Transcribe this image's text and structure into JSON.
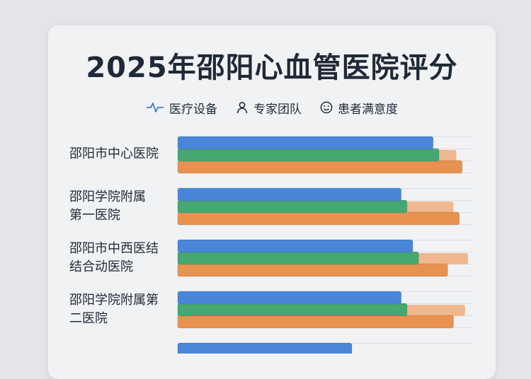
{
  "chart_data": {
    "type": "bar",
    "orientation": "horizontal",
    "title": "2025年邵阳心血管医院评分",
    "categories": [
      [
        "邵阳市中心医院"
      ],
      [
        "邵阳学院附属",
        "第一医院"
      ],
      [
        "邵阳市中西医结",
        "结合动医院"
      ],
      [
        "邵阳学院附属第",
        "二医院"
      ],
      [
        ""
      ]
    ],
    "series": [
      {
        "name": "医疗设备",
        "color": "#4a86d8",
        "values": [
          88,
          77,
          81,
          77,
          60
        ]
      },
      {
        "name": "专家团队",
        "color": "#46a772",
        "values": [
          90,
          79,
          83,
          79,
          null
        ]
      },
      {
        "name": "患者满意度",
        "color": "#e8924f",
        "values": [
          98,
          97,
          93,
          95,
          null
        ]
      }
    ],
    "ghost_values": [
      96,
      95,
      100,
      99,
      null
    ],
    "xlim": [
      0,
      100
    ],
    "grid": true,
    "legend_position": "top"
  },
  "legend_icons": [
    "pulse-icon",
    "person-icon",
    "smile-icon"
  ]
}
